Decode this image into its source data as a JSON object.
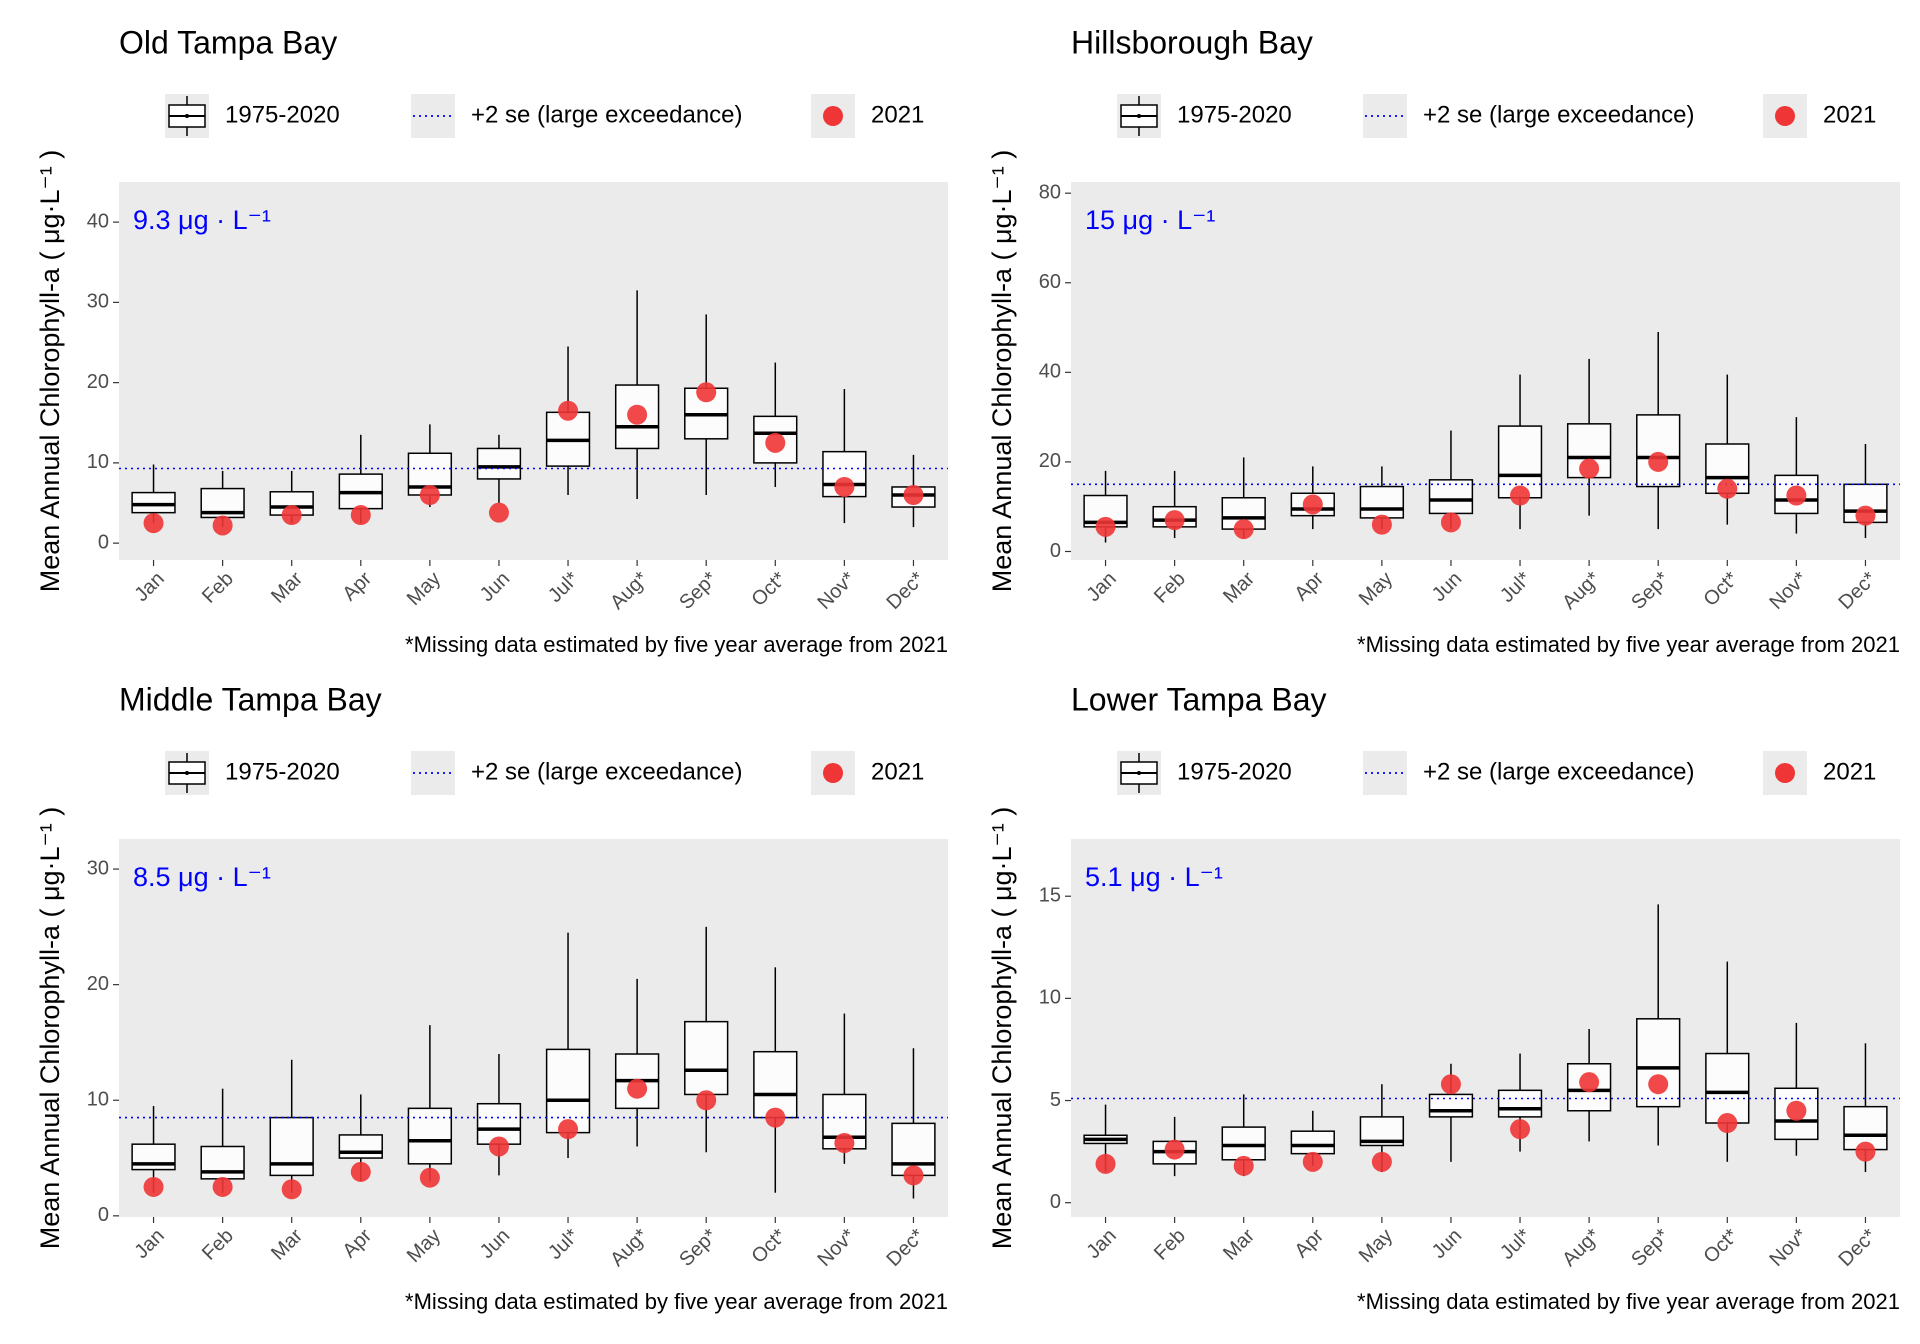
{
  "chart_data": [
    {
      "type": "box",
      "title": "Old Tampa Bay",
      "y_label": "Mean Annual Chlorophyll-a ( μg·L⁻¹ )",
      "footnote": "*Missing data estimated by five year average from 2021",
      "categories": [
        "Jan",
        "Feb",
        "Mar",
        "Apr",
        "May",
        "Jun",
        "Jul*",
        "Aug*",
        "Sep*",
        "Oct*",
        "Nov*",
        "Dec*"
      ],
      "boxes": {
        "name": "1975-2020",
        "lower": [
          2.5,
          2,
          2.5,
          2.5,
          4.5,
          5,
          6,
          5.5,
          6,
          7,
          2.5,
          2
        ],
        "q1": [
          3.8,
          3.2,
          3.5,
          4.3,
          6,
          8,
          9.6,
          11.8,
          13,
          10,
          5.8,
          4.5
        ],
        "median": [
          4.8,
          3.8,
          4.5,
          6.3,
          7,
          9.5,
          12.8,
          14.5,
          16,
          13.7,
          7.3,
          6
        ],
        "q3": [
          6.3,
          6.8,
          6.4,
          8.6,
          11.2,
          11.8,
          16.3,
          19.7,
          19.3,
          15.8,
          11.4,
          7
        ],
        "upper": [
          9.8,
          9,
          9,
          13.5,
          14.8,
          13.5,
          24.5,
          31.5,
          28.5,
          22.5,
          19.2,
          11
        ]
      },
      "points": {
        "name": "2021",
        "color": "#ef3535",
        "values": [
          2.5,
          2.2,
          3.5,
          3.5,
          6,
          3.8,
          16.5,
          16,
          18.8,
          12.5,
          7,
          6
        ]
      },
      "threshold": {
        "name": "+2 se (large exceedance)",
        "color": "#0000ff",
        "value": 9.3,
        "label": "9.3 μg · L⁻¹"
      },
      "ylim": [
        -2.1,
        45
      ],
      "yticks": [
        0,
        10,
        20,
        30,
        40
      ]
    },
    {
      "type": "box",
      "title": "Hillsborough Bay",
      "y_label": "Mean Annual Chlorophyll-a ( μg·L⁻¹ )",
      "footnote": "*Missing data estimated by five year average from 2021",
      "categories": [
        "Jan",
        "Feb",
        "Mar",
        "Apr",
        "May",
        "Jun",
        "Jul*",
        "Aug*",
        "Sep*",
        "Oct*",
        "Nov*",
        "Dec*"
      ],
      "boxes": {
        "name": "1975-2020",
        "lower": [
          2,
          3,
          3,
          5,
          5,
          5,
          5,
          8,
          5,
          6,
          4,
          3
        ],
        "q1": [
          5.5,
          5.5,
          5,
          8,
          7.5,
          8.5,
          12,
          16.5,
          14.5,
          13,
          8.5,
          6.5
        ],
        "median": [
          6.5,
          7,
          7.5,
          9.5,
          9.5,
          11.5,
          17,
          21,
          21,
          16.5,
          11.5,
          9
        ],
        "q3": [
          12.5,
          10,
          12,
          13,
          14.5,
          16,
          28,
          28.5,
          30.5,
          24,
          17,
          15
        ],
        "upper": [
          18,
          18,
          21,
          19,
          19,
          27,
          39.5,
          43,
          49,
          39.5,
          30,
          24
        ]
      },
      "points": {
        "name": "2021",
        "color": "#ef3535",
        "values": [
          5.5,
          7,
          5,
          10.5,
          6,
          6.5,
          12.5,
          18.5,
          20,
          14,
          12.5,
          8
        ]
      },
      "threshold": {
        "name": "+2 se (large exceedance)",
        "color": "#0000ff",
        "value": 15,
        "label": "15 μg · L⁻¹"
      },
      "ylim": [
        -1.9,
        82.5
      ],
      "yticks": [
        0,
        20,
        40,
        60,
        80
      ]
    },
    {
      "type": "box",
      "title": "Middle Tampa Bay",
      "y_label": "Mean Annual Chlorophyll-a ( μg·L⁻¹ )",
      "footnote": "*Missing data estimated by five year average from 2021",
      "categories": [
        "Jan",
        "Feb",
        "Mar",
        "Apr",
        "May",
        "Jun",
        "Jul*",
        "Aug*",
        "Sep*",
        "Oct*",
        "Nov*",
        "Dec*"
      ],
      "boxes": {
        "name": "1975-2020",
        "lower": [
          2,
          2,
          2,
          3,
          3,
          3.5,
          5,
          6,
          5.5,
          2,
          4.5,
          1.5
        ],
        "q1": [
          4,
          3.2,
          3.5,
          5,
          4.5,
          6.2,
          7.2,
          9.3,
          10.5,
          8.5,
          5.8,
          3.5
        ],
        "median": [
          4.5,
          3.8,
          4.5,
          5.5,
          6.5,
          7.5,
          10,
          11.7,
          12.6,
          10.5,
          6.8,
          4.5
        ],
        "q3": [
          6.2,
          6,
          8.5,
          7,
          9.3,
          9.7,
          14.4,
          14,
          16.8,
          14.2,
          10.5,
          8
        ],
        "upper": [
          9.5,
          11,
          13.5,
          10.5,
          16.5,
          14,
          24.5,
          20.5,
          25,
          21.5,
          17.5,
          14.5
        ]
      },
      "points": {
        "name": "2021",
        "color": "#ef3535",
        "values": [
          2.5,
          2.5,
          2.3,
          3.8,
          3.3,
          6,
          7.5,
          11,
          10,
          8.5,
          6.3,
          3.5
        ]
      },
      "threshold": {
        "name": "+2 se (large exceedance)",
        "color": "#0000ff",
        "value": 8.5,
        "label": "8.5 μg · L⁻¹"
      },
      "ylim": [
        -0.1,
        32.6
      ],
      "yticks": [
        0,
        10,
        20,
        30
      ]
    },
    {
      "type": "box",
      "title": "Lower Tampa Bay",
      "y_label": "Mean Annual Chlorophyll-a ( μg·L⁻¹ )",
      "footnote": "*Missing data estimated by five year average from 2021",
      "categories": [
        "Jan",
        "Feb",
        "Mar",
        "Apr",
        "May",
        "Jun",
        "Jul*",
        "Aug*",
        "Sep*",
        "Oct*",
        "Nov*",
        "Dec*"
      ],
      "boxes": {
        "name": "1975-2020",
        "lower": [
          1.5,
          1.3,
          1.3,
          1.8,
          1.5,
          2,
          2.5,
          3,
          2.8,
          2,
          2.3,
          1.5
        ],
        "q1": [
          2.9,
          1.9,
          2.1,
          2.4,
          2.8,
          4.2,
          4.2,
          4.5,
          4.7,
          3.9,
          3.1,
          2.6
        ],
        "median": [
          3.1,
          2.5,
          2.8,
          2.8,
          3,
          4.5,
          4.6,
          5.5,
          6.6,
          5.4,
          4,
          3.3
        ],
        "q3": [
          3.3,
          3,
          3.7,
          3.5,
          4.2,
          5.3,
          5.5,
          6.8,
          9,
          7.3,
          5.6,
          4.7
        ],
        "upper": [
          4.8,
          4.2,
          5.3,
          4.5,
          5.8,
          6.8,
          7.3,
          8.5,
          14.6,
          11.8,
          8.8,
          7.8
        ]
      },
      "points": {
        "name": "2021",
        "color": "#ef3535",
        "values": [
          1.9,
          2.6,
          1.8,
          2,
          2,
          5.8,
          3.6,
          5.9,
          5.8,
          3.9,
          4.5,
          2.5
        ]
      },
      "threshold": {
        "name": "+2 se (large exceedance)",
        "color": "#0000ff",
        "value": 5.1,
        "label": "5.1 μg · L⁻¹"
      },
      "ylim": [
        -0.7,
        17.8
      ],
      "yticks": [
        0,
        5,
        10,
        15
      ]
    }
  ]
}
